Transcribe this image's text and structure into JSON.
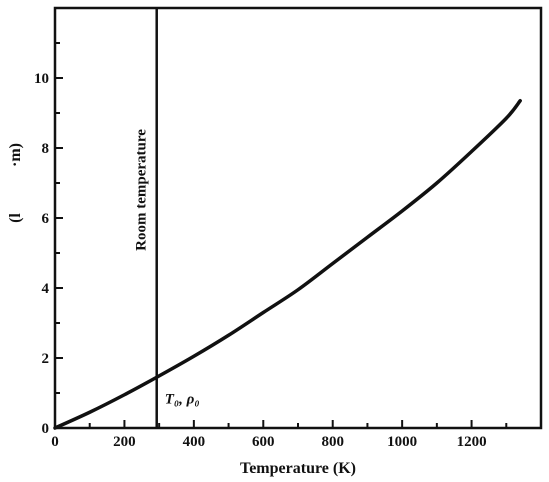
{
  "chart_data": {
    "type": "line",
    "title": "",
    "xlabel": "Temperature (K)",
    "ylabel_fragments": [
      "(l",
      "·m)"
    ],
    "xlim": [
      0,
      1400
    ],
    "ylim": [
      0,
      12
    ],
    "x_ticks": [
      0,
      200,
      400,
      600,
      800,
      1000,
      1200
    ],
    "y_ticks": [
      0,
      2,
      4,
      6,
      8,
      10
    ],
    "grid": false,
    "series": [
      {
        "x": [
          0,
          100,
          200,
          293,
          400,
          500,
          600,
          700,
          800,
          900,
          1000,
          1100,
          1200,
          1300,
          1340
        ],
        "y": [
          0,
          0.45,
          0.95,
          1.45,
          2.05,
          2.65,
          3.3,
          3.95,
          4.7,
          5.45,
          6.2,
          7.0,
          7.9,
          8.85,
          9.35
        ]
      }
    ],
    "vline": {
      "x": 293,
      "label": "Room temperature"
    },
    "point_annotation": {
      "x": 293,
      "y": 1.45,
      "label": "T₀, ρ₀"
    }
  }
}
